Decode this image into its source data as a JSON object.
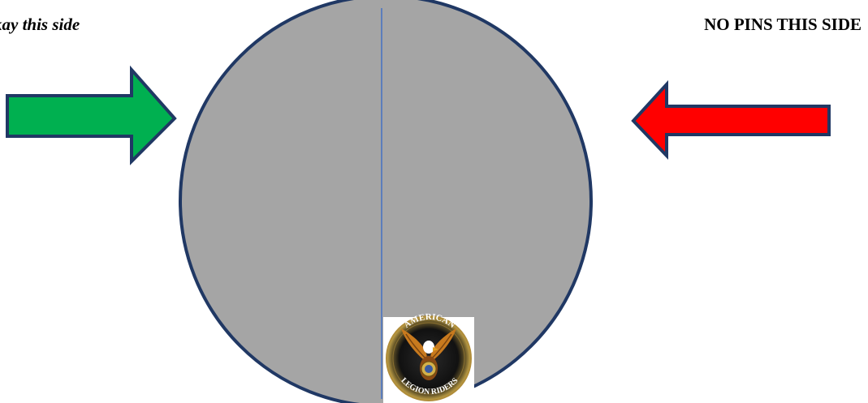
{
  "labels": {
    "left": "kay this side",
    "right": "NO PINS THIS SIDE"
  },
  "colors": {
    "circle_fill": "#a5a5a5",
    "circle_stroke": "#203864",
    "divider_line": "#4472c4",
    "arrow_left_fill": "#00b050",
    "arrow_right_fill": "#ff0000",
    "arrow_stroke": "#203864"
  },
  "logo": {
    "name": "american-legion-riders-logo",
    "text_top": "AMERICAN",
    "text_bottom": "LEGION RIDERS"
  }
}
